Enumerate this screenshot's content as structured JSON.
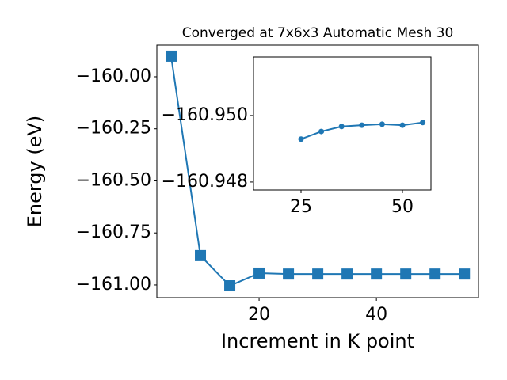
{
  "chart_data": [
    {
      "type": "line",
      "title": "Converged at 7x6x3 Automatic Mesh 30",
      "xlabel": "Increment in K point",
      "ylabel": "Energy (eV)",
      "x": [
        5,
        10,
        15,
        20,
        25,
        30,
        35,
        40,
        45,
        50,
        55
      ],
      "series": [
        {
          "color": "#1f77b4",
          "marker": "square",
          "values": [
            -159.901,
            -160.859,
            -161.004,
            -160.943,
            -160.9475,
            -160.9475,
            -160.9475,
            -160.9475,
            -160.9475,
            -160.9475,
            -160.9475
          ]
        }
      ],
      "xlim": [
        2.57,
        57.4
      ],
      "xticks": [
        20,
        40
      ],
      "ylim": [
        -161.061,
        -159.848
      ],
      "yticks": [
        {
          "value": -160.0,
          "label": "−160.00"
        },
        {
          "value": -160.25,
          "label": "−160.25"
        },
        {
          "value": -160.5,
          "label": "−160.50"
        },
        {
          "value": -160.75,
          "label": "−160.75"
        },
        {
          "value": -161.0,
          "label": "−161.00"
        }
      ]
    },
    {
      "type": "line",
      "inverted_y": true,
      "x": [
        25,
        30,
        35,
        40,
        45,
        50,
        55
      ],
      "series": [
        {
          "color": "#1f77b4",
          "marker": "circle",
          "values": [
            -160.94929,
            -160.94952,
            -160.94967,
            -160.94971,
            -160.94974,
            -160.94971,
            -160.94979
          ]
        }
      ],
      "xlim": [
        13.28,
        57.03
      ],
      "xticks": [
        25,
        50
      ],
      "ylim": [
        -160.95176,
        -160.94776
      ],
      "yticks": [
        {
          "value": -160.95,
          "label": "−160.950"
        },
        {
          "value": -160.948,
          "label": "−160.948"
        }
      ]
    }
  ]
}
